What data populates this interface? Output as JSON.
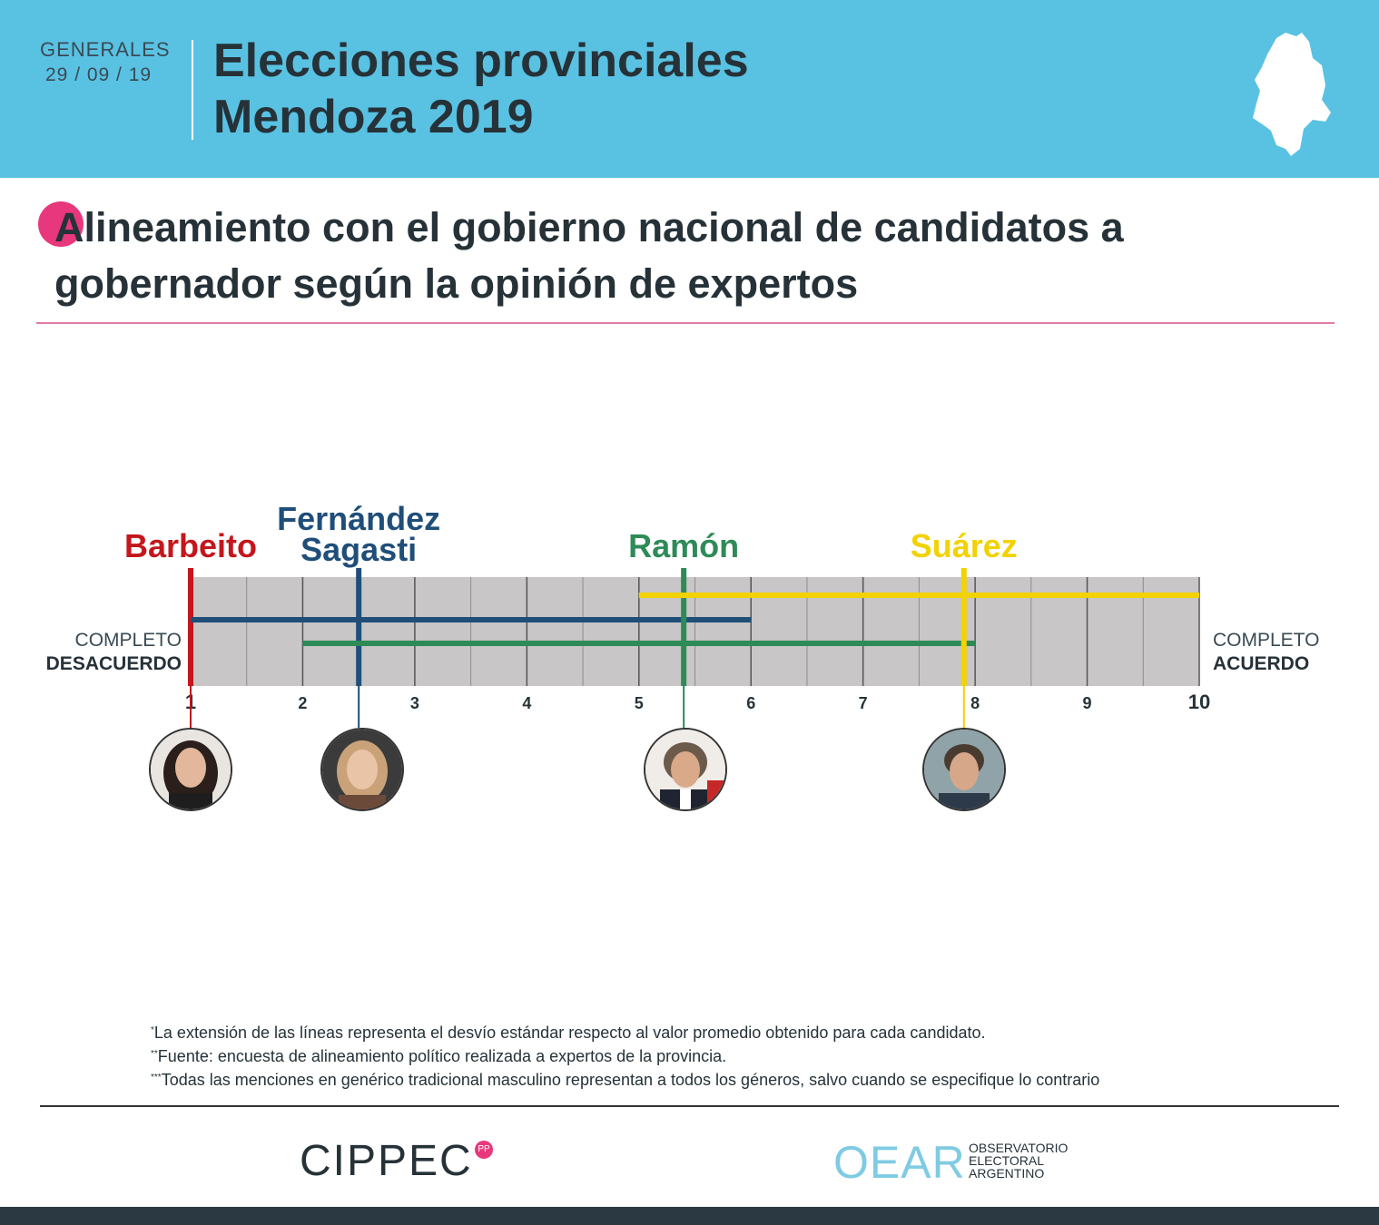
{
  "header": {
    "election_type": "GENERALES",
    "date": "29 / 09 / 19",
    "title_line1": "Elecciones provinciales",
    "title_line2": "Mendoza 2019"
  },
  "subtitle": {
    "line1": "Alineamiento con el gobierno nacional de candidatos a",
    "line2": "gobernador según la opinión de expertos"
  },
  "axis": {
    "left_label_line1": "COMPLETO",
    "left_label_line2": "DESACUERDO",
    "right_label_line1": "COMPLETO",
    "right_label_line2": "ACUERDO"
  },
  "chart_data": {
    "type": "scatter",
    "title": "Alineamiento con el gobierno nacional de candidatos a gobernador según la opinión de expertos",
    "xlim": [
      1,
      10
    ],
    "ticks": [
      "1",
      "2",
      "3",
      "4",
      "5",
      "6",
      "7",
      "8",
      "9",
      "10"
    ],
    "candidates": [
      {
        "name": "Barbeito",
        "name_line2": "",
        "mean": 1.0,
        "range": [
          1.0,
          1.0
        ],
        "color": "#c4161c"
      },
      {
        "name": "Fernández",
        "name_line2": "Sagasti",
        "mean": 2.5,
        "range": [
          1.0,
          6.0
        ],
        "color": "#1f4e79"
      },
      {
        "name": "Ramón",
        "name_line2": "",
        "mean": 5.4,
        "range": [
          2.0,
          8.0
        ],
        "color": "#2e8b57"
      },
      {
        "name": "Suárez",
        "name_line2": "",
        "mean": 7.9,
        "range": [
          5.0,
          10.0
        ],
        "color": "#f2d200"
      }
    ]
  },
  "notes": {
    "note1_mark": "*",
    "note1": "La extensión de las líneas representa el desvío estándar respecto al valor promedio obtenido para cada candidato.",
    "note2_mark": "**",
    "note2": "Fuente: encuesta de alineamiento político realizada a expertos de la provincia.",
    "note3_mark": "***",
    "note3": "Todas las menciones en genérico tradicional masculino representan a todos los géneros, salvo cuando se especifique lo contrario"
  },
  "footer": {
    "logo1": "CIPPEC",
    "logo1_badge": "PP",
    "logo2": "OEAR",
    "logo2_line1": "OBSERVATORIO",
    "logo2_line2": "ELECTORAL",
    "logo2_line3": "ARGENTINO"
  }
}
